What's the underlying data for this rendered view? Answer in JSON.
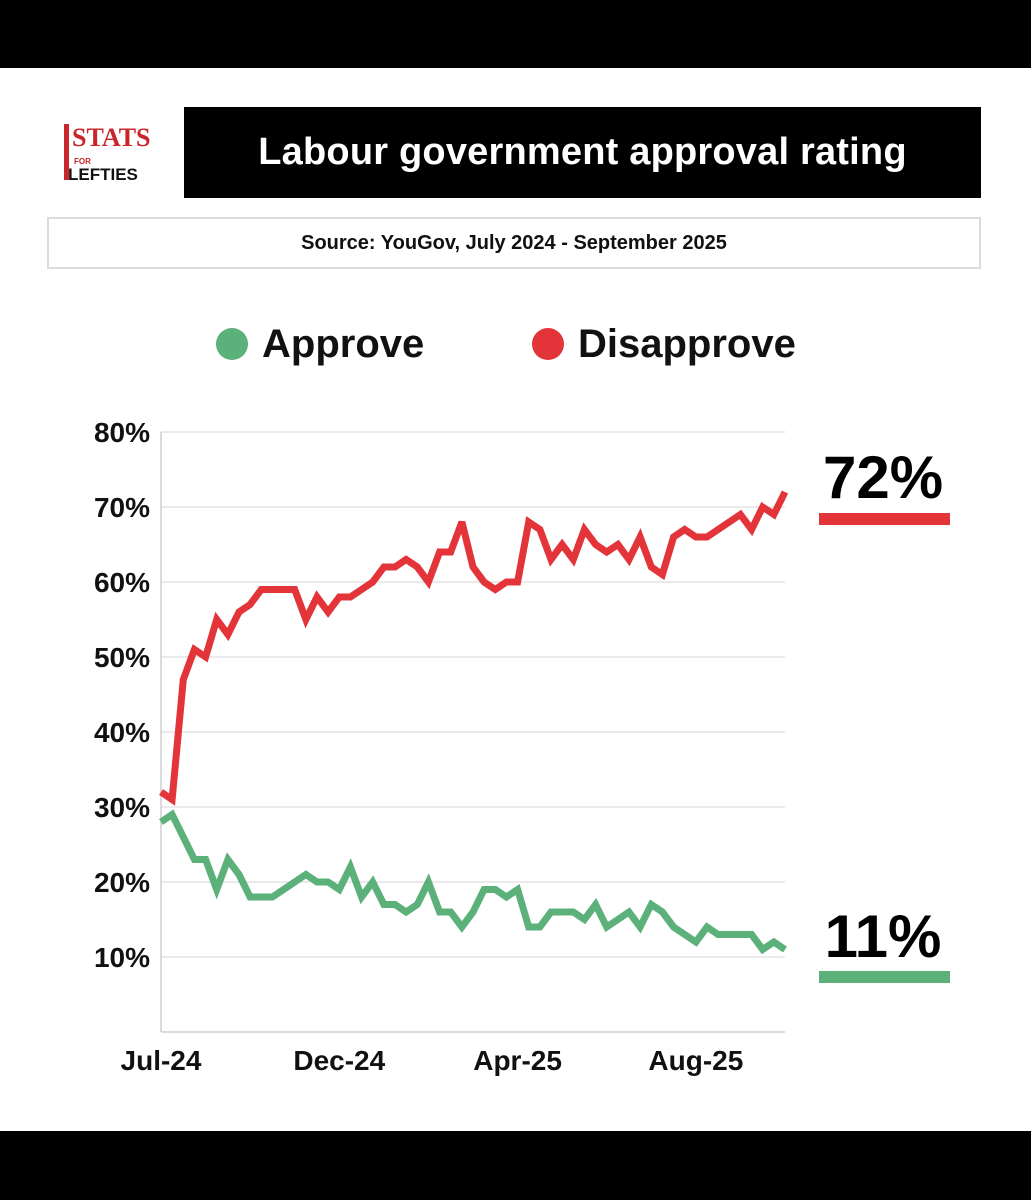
{
  "header": {
    "logo_text_top": "STATS",
    "logo_text_mid": "FOR",
    "logo_text_bottom": "LEFTIES",
    "title": "Labour government approval rating",
    "source": "Source: YouGov, July 2024 - September 2025"
  },
  "colors": {
    "approve": "#5cb07a",
    "disapprove": "#e3343a",
    "logo_red": "#c8262b",
    "grid": "#dedede"
  },
  "chart_data": {
    "type": "line",
    "title": "Labour government approval rating",
    "xlabel": "",
    "ylabel": "",
    "ylim": [
      0,
      80
    ],
    "y_ticks": [
      "10%",
      "20%",
      "30%",
      "40%",
      "50%",
      "60%",
      "70%",
      "80%"
    ],
    "x_ticks": [
      {
        "label": "Jul-24",
        "index": 0
      },
      {
        "label": "Dec-24",
        "index": 16
      },
      {
        "label": "Apr-25",
        "index": 32
      },
      {
        "label": "Aug-25",
        "index": 48
      }
    ],
    "grid": true,
    "legend_position": "top-center",
    "series": [
      {
        "name": "Approve",
        "color": "#5cb07a",
        "end_label": "11%",
        "values": [
          28,
          29,
          26,
          23,
          23,
          19,
          23,
          21,
          18,
          18,
          18,
          19,
          20,
          21,
          20,
          20,
          19,
          22,
          18,
          20,
          17,
          17,
          16,
          17,
          20,
          16,
          16,
          14,
          16,
          19,
          19,
          18,
          19,
          14,
          14,
          16,
          16,
          16,
          15,
          17,
          14,
          15,
          16,
          14,
          17,
          16,
          14,
          13,
          12,
          14,
          13,
          13,
          13,
          13,
          11,
          12,
          11
        ]
      },
      {
        "name": "Disapprove",
        "color": "#e3343a",
        "end_label": "72%",
        "values": [
          32,
          31,
          47,
          51,
          50,
          55,
          53,
          56,
          57,
          59,
          59,
          59,
          59,
          55,
          58,
          56,
          58,
          58,
          59,
          60,
          62,
          62,
          63,
          62,
          60,
          64,
          64,
          68,
          62,
          60,
          59,
          60,
          60,
          68,
          67,
          63,
          65,
          63,
          67,
          65,
          64,
          65,
          63,
          66,
          62,
          61,
          66,
          67,
          66,
          66,
          67,
          68,
          69,
          67,
          70,
          69,
          72
        ]
      }
    ]
  }
}
